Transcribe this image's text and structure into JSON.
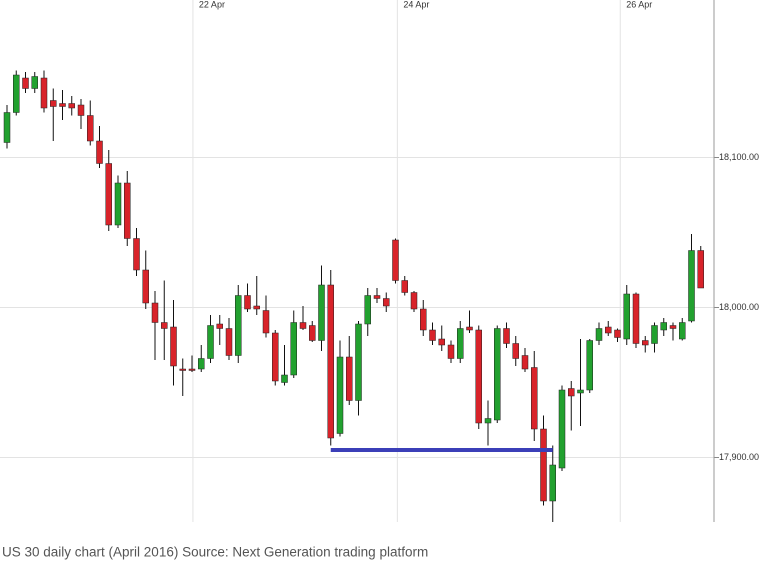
{
  "chart_data": {
    "type": "candlestick",
    "caption": "US 30 daily chart (April 2016) Source: Next Generation trading platform",
    "open": [
      18110,
      18130,
      18153,
      18146,
      18153,
      18138,
      18136,
      18136,
      18135,
      18128,
      18111,
      18096,
      18055,
      18083,
      18046,
      18025,
      18003,
      17990,
      17987,
      17959,
      17959,
      17959,
      17966,
      17989,
      17986,
      17968,
      18008,
      18001,
      17998,
      17983,
      17950,
      17955,
      17990,
      17988,
      17978,
      18015,
      17916,
      17967,
      17938,
      17989,
      18008,
      18006,
      18045,
      18018,
      18010,
      17999,
      17985,
      17979,
      17975,
      17966,
      17987,
      17985,
      17923,
      17925,
      17986,
      17976,
      17968,
      17960,
      17919,
      17871,
      17893,
      17946,
      17943,
      17945,
      17978,
      17987,
      17985,
      17979,
      18009,
      17978,
      17976,
      17985,
      17988,
      17979,
      17991,
      18038
    ],
    "high": [
      18135,
      18158,
      18157,
      18157,
      18158,
      18146,
      18145,
      18141,
      18139,
      18138,
      18121,
      18105,
      18088,
      18091,
      18053,
      18038,
      18011,
      18018,
      18005,
      17966,
      17968,
      17975,
      17995,
      17995,
      17993,
      18015,
      18016,
      18021,
      18008,
      17985,
      17975,
      17998,
      18001,
      17991,
      18028,
      18025,
      17978,
      17981,
      17991,
      18013,
      18013,
      18010,
      18046,
      18021,
      18011,
      18005,
      17990,
      17988,
      17978,
      17991,
      17998,
      17988,
      17938,
      17988,
      17990,
      17981,
      17973,
      17971,
      17928,
      17908,
      17948,
      17951,
      17979,
      17979,
      17990,
      17991,
      17986,
      18015,
      18010,
      17981,
      17990,
      17993,
      17990,
      17993,
      18049,
      18041
    ],
    "low": [
      18106,
      18128,
      18143,
      18143,
      18130,
      18111,
      18125,
      18128,
      18119,
      18108,
      18093,
      18051,
      18053,
      18041,
      18021,
      17999,
      17965,
      17965,
      17948,
      17941,
      17957,
      17957,
      17963,
      17975,
      17965,
      17963,
      17997,
      17995,
      17980,
      17948,
      17948,
      17953,
      17985,
      17977,
      17971,
      17908,
      17914,
      17935,
      17928,
      17981,
      18003,
      17997,
      18016,
      18008,
      17997,
      17981,
      17975,
      17971,
      17963,
      17963,
      17983,
      17919,
      17908,
      17923,
      17973,
      17961,
      17957,
      17911,
      17868,
      17857,
      17891,
      17918,
      17921,
      17943,
      17975,
      17981,
      17977,
      17975,
      17973,
      17970,
      17970,
      17981,
      17978,
      17978,
      17990,
      18013
    ],
    "close": [
      18130,
      18155,
      18146,
      18154,
      18133,
      18134,
      18134,
      18133,
      18128,
      18111,
      18096,
      18055,
      18083,
      18046,
      18025,
      18003,
      17990,
      17986,
      17961,
      17958,
      17958,
      17966,
      17988,
      17986,
      17968,
      18008,
      17999,
      17999,
      17983,
      17951,
      17955,
      17990,
      17986,
      17978,
      18015,
      17913,
      17967,
      17938,
      17989,
      18008,
      18006,
      18001,
      18018,
      18010,
      17999,
      17985,
      17978,
      17975,
      17966,
      17986,
      17985,
      17923,
      17926,
      17986,
      17976,
      17966,
      17959,
      17919,
      17871,
      17895,
      17945,
      17941,
      17945,
      17978,
      17986,
      17983,
      17980,
      18009,
      17976,
      17975,
      17988,
      17990,
      17986,
      17990,
      18038,
      18013
    ],
    "up_color": "#22a12f",
    "down_color": "#d8232a",
    "ylim": [
      17857,
      18205
    ],
    "yticks": [
      {
        "value": 17900,
        "label": "17,900.00"
      },
      {
        "value": 18000,
        "label": "18,000.00"
      },
      {
        "value": 18100,
        "label": "18,100.00"
      }
    ],
    "xticks": [
      {
        "value": 20.1,
        "label": "22 Apr"
      },
      {
        "value": 42.2,
        "label": "24 Apr"
      },
      {
        "value": 66.3,
        "label": "26 Apr"
      }
    ],
    "grid": true,
    "support_line": {
      "value": 17905,
      "from": 35,
      "to": 59,
      "color": "#3b3fb8"
    }
  }
}
